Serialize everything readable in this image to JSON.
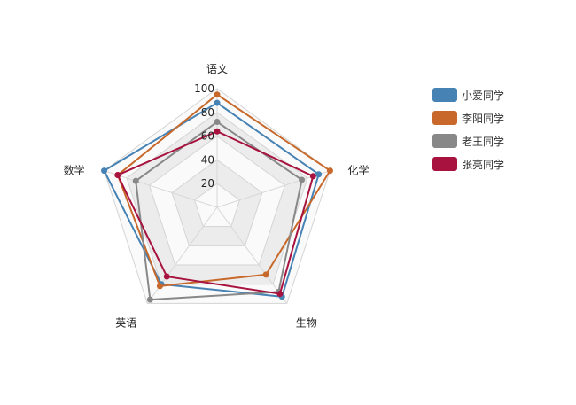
{
  "chart_data": {
    "type": "radar",
    "title": "",
    "axes": [
      "语文",
      "化学",
      "生物",
      "英语",
      "数学"
    ],
    "rlim": [
      0,
      100
    ],
    "ticks": [
      20,
      40,
      60,
      80,
      100
    ],
    "series": [
      {
        "name": "小爱同学",
        "color": "#4682b4",
        "values": [
          88,
          90,
          93,
          80,
          100
        ]
      },
      {
        "name": "李阳同学",
        "color": "#c8692b",
        "values": [
          95,
          100,
          70,
          82,
          88
        ]
      },
      {
        "name": "老王同学",
        "color": "#888888",
        "values": [
          72,
          75,
          88,
          96,
          72
        ]
      },
      {
        "name": "张亮同学",
        "color": "#a8123e",
        "values": [
          64,
          85,
          90,
          72,
          88
        ]
      }
    ],
    "legend_position": "right"
  }
}
